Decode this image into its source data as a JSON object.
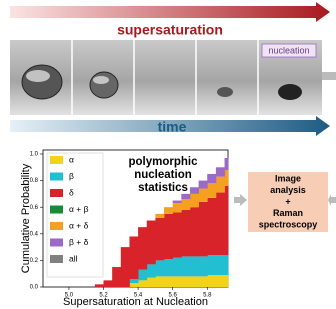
{
  "diagram": {
    "top_arrow_label": "supersaturation",
    "bottom_arrow_label": "time",
    "panel_label": "nucleation",
    "process_box": [
      "Image",
      "analysis",
      "+",
      "Raman",
      "spectroscopy"
    ]
  },
  "chart_data": {
    "type": "stacked_area",
    "annotation": [
      "polymorphic",
      "nucleation",
      "statistics"
    ],
    "x_label": "Supersaturation at Nucleation",
    "y_label": "Cumulative Probability",
    "x": [
      5.05,
      5.15,
      5.2,
      5.25,
      5.3,
      5.35,
      5.4,
      5.45,
      5.5,
      5.55,
      5.6,
      5.65,
      5.7,
      5.75,
      5.8,
      5.85,
      5.9
    ],
    "series": [
      {
        "name": "α",
        "color": "#f2d21a",
        "values": [
          0,
          0,
          0,
          0,
          0,
          0.03,
          0.05,
          0.07,
          0.08,
          0.08,
          0.08,
          0.08,
          0.08,
          0.08,
          0.09,
          0.09,
          0.09
        ]
      },
      {
        "name": "β",
        "color": "#22bfd2",
        "values": [
          0,
          0,
          0,
          0,
          0,
          0.03,
          0.08,
          0.1,
          0.12,
          0.13,
          0.14,
          0.15,
          0.15,
          0.15,
          0.15,
          0.15,
          0.15
        ]
      },
      {
        "name": "δ",
        "color": "#d8232a",
        "values": [
          0,
          0.02,
          0.05,
          0.15,
          0.3,
          0.32,
          0.32,
          0.33,
          0.32,
          0.34,
          0.34,
          0.35,
          0.37,
          0.41,
          0.43,
          0.47,
          0.52
        ]
      },
      {
        "name": "α + β",
        "color": "#1a8a3a",
        "values": [
          0,
          0,
          0,
          0,
          0,
          0,
          0,
          0,
          0,
          0,
          0,
          0,
          0,
          0,
          0,
          0,
          0
        ]
      },
      {
        "name": "α + δ",
        "color": "#f5a020",
        "values": [
          0,
          0,
          0,
          0,
          0,
          0,
          0,
          0,
          0.03,
          0.05,
          0.07,
          0.08,
          0.1,
          0.1,
          0.11,
          0.12,
          0.12
        ]
      },
      {
        "name": "β + δ",
        "color": "#9b6ac8",
        "values": [
          0,
          0,
          0,
          0,
          0,
          0,
          0,
          0,
          0,
          0,
          0.02,
          0.04,
          0.05,
          0.06,
          0.07,
          0.07,
          0.09
        ]
      },
      {
        "name": "all",
        "color": "#808080",
        "values": [
          0,
          0,
          0,
          0,
          0,
          0,
          0,
          0,
          0,
          0,
          0,
          0,
          0,
          0,
          0,
          0,
          0
        ]
      }
    ],
    "xlim": [
      4.85,
      5.92
    ],
    "ylim": [
      0,
      1.03
    ],
    "xticks": [
      {
        "value": 5.0,
        "label": "5.0"
      },
      5.2,
      5.4,
      5.6,
      5.8
    ],
    "yticks": [
      {
        "value": 0,
        "label": "0.0"
      },
      0.2,
      0.4,
      0.6,
      0.8,
      {
        "value": 1,
        "label": "1.0"
      }
    ]
  }
}
